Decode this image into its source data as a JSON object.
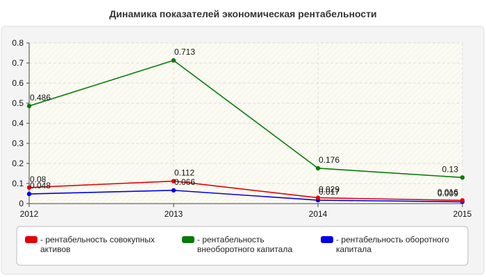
{
  "chart_data": {
    "type": "line",
    "title": "Динамика показателей экономическая рентабельности",
    "xlabel": "",
    "ylabel": "",
    "x": [
      "2012",
      "2013",
      "2014",
      "2015"
    ],
    "ylim": [
      0,
      0.8
    ],
    "yticks": [
      "0",
      "0.1",
      "0.2",
      "0.3",
      "0.4",
      "0.5",
      "0.6",
      "0.7",
      "0.8"
    ],
    "grid": true,
    "legend_position": "bottom",
    "series": [
      {
        "name": "- рентабельность совокупных активов",
        "legend_lines": [
          "- рентабельность совокупных",
          "активов"
        ],
        "color": "#e60000",
        "values": [
          0.08,
          0.112,
          0.029,
          0.016
        ],
        "labels": [
          "0.08",
          "0.112",
          "0.029",
          "0.016"
        ]
      },
      {
        "name": "- рентабельность внеоборотного капитала",
        "legend_lines": [
          "- рентабельность",
          "внеоборотного капитала"
        ],
        "color": "#087a08",
        "values": [
          0.486,
          0.713,
          0.176,
          0.13
        ],
        "labels": [
          "0.486",
          "0.713",
          "0.176",
          "0.13"
        ]
      },
      {
        "name": "- рентабельность оборотного капитала",
        "legend_lines": [
          "- рентабельность оборотного",
          "капитала"
        ],
        "color": "#0000e6",
        "values": [
          0.048,
          0.066,
          0.017,
          0.009
        ],
        "labels": [
          "0.048",
          "0.066",
          "0.017",
          "0.009"
        ]
      }
    ]
  }
}
